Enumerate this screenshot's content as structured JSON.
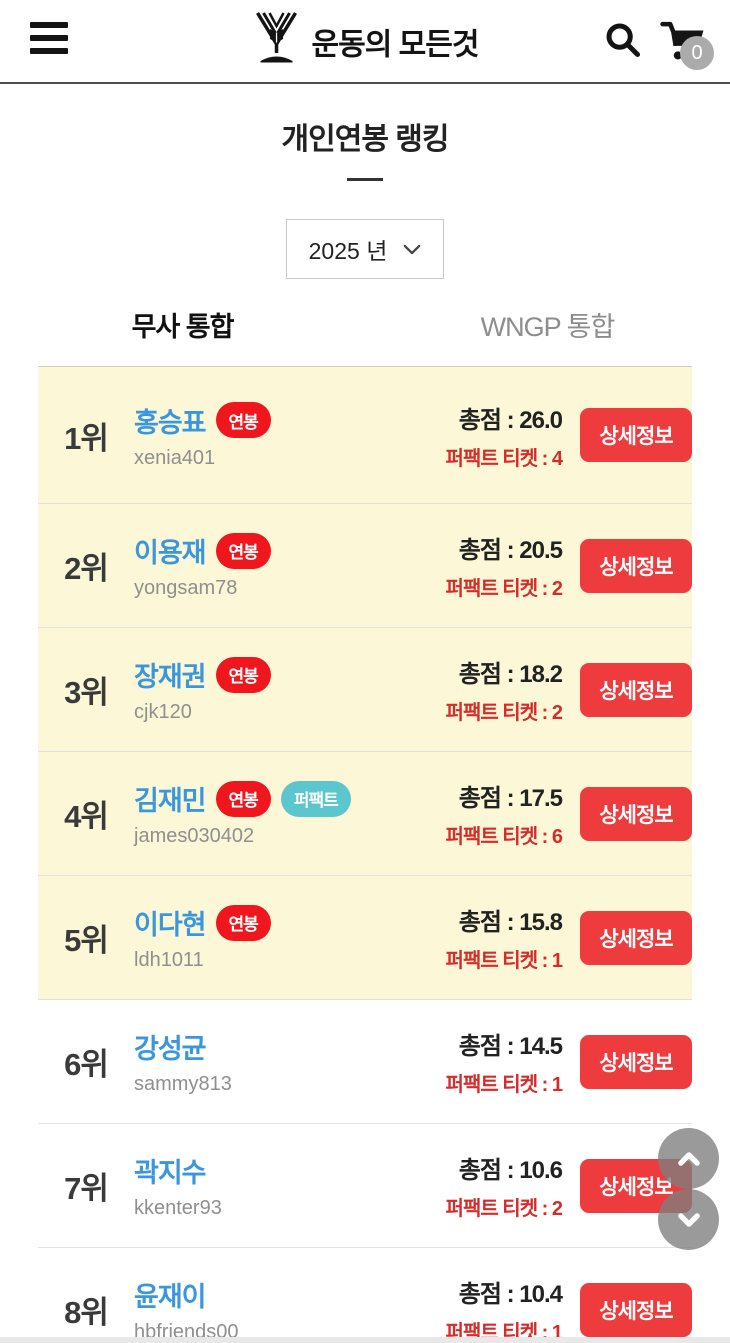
{
  "header": {
    "logo_text": "운동의 모든것",
    "cart_badge": "0"
  },
  "page": {
    "title": "개인연봉 랭킹",
    "year_select": "2025 년"
  },
  "tabs": [
    {
      "label": "무사 통합",
      "active": true
    },
    {
      "label": "WNGP 통합",
      "active": false
    }
  ],
  "ranking": {
    "detail_button": "상세정보",
    "rows": [
      {
        "rank": "1위",
        "name": "홍승표",
        "username": "xenia401",
        "badges": [
          {
            "label": "연봉",
            "type": "salary"
          }
        ],
        "score_text": "총점 : 26.0",
        "ticket_text": "퍼팩트 티켓 : 4",
        "highlight": true
      },
      {
        "rank": "2위",
        "name": "이용재",
        "username": "yongsam78",
        "badges": [
          {
            "label": "연봉",
            "type": "salary"
          }
        ],
        "score_text": "총점 : 20.5",
        "ticket_text": "퍼팩트 티켓 : 2",
        "highlight": true
      },
      {
        "rank": "3위",
        "name": "장재권",
        "username": "cjk120",
        "badges": [
          {
            "label": "연봉",
            "type": "salary"
          }
        ],
        "score_text": "총점 : 18.2",
        "ticket_text": "퍼팩트 티켓 : 2",
        "highlight": true
      },
      {
        "rank": "4위",
        "name": "김재민",
        "username": "james030402",
        "badges": [
          {
            "label": "연봉",
            "type": "salary"
          },
          {
            "label": "퍼팩트",
            "type": "perfect"
          }
        ],
        "score_text": "총점 : 17.5",
        "ticket_text": "퍼팩트 티켓 : 6",
        "highlight": true
      },
      {
        "rank": "5위",
        "name": "이다현",
        "username": "ldh1011",
        "badges": [
          {
            "label": "연봉",
            "type": "salary"
          }
        ],
        "score_text": "총점 : 15.8",
        "ticket_text": "퍼팩트 티켓 : 1",
        "highlight": true
      },
      {
        "rank": "6위",
        "name": "강성균",
        "username": "sammy813",
        "badges": [],
        "score_text": "총점 : 14.5",
        "ticket_text": "퍼팩트 티켓 : 1",
        "highlight": false
      },
      {
        "rank": "7위",
        "name": "곽지수",
        "username": "kkenter93",
        "badges": [],
        "score_text": "총점 : 10.6",
        "ticket_text": "퍼팩트 티켓 : 2",
        "highlight": false
      },
      {
        "rank": "8위",
        "name": "윤재이",
        "username": "hbfriends00",
        "badges": [],
        "score_text": "총점 : 10.4",
        "ticket_text": "퍼팩트 티켓 : 1",
        "highlight": false
      }
    ]
  },
  "icons": {
    "menu": "hamburger-icon",
    "logo": "emblem-icon",
    "search": "search-icon",
    "cart": "cart-icon",
    "year_chevron": "chevron-down-icon",
    "scroll_up": "chevron-up-icon",
    "scroll_down": "chevron-down-icon"
  },
  "colors": {
    "accent_red": "#ee3b3e",
    "badge_red": "#f0161d",
    "badge_teal": "#5bc6cd",
    "name_blue": "#3b97dd",
    "ticket_red": "#d52b2b",
    "highlight_yellow": "#fcf8d7"
  }
}
